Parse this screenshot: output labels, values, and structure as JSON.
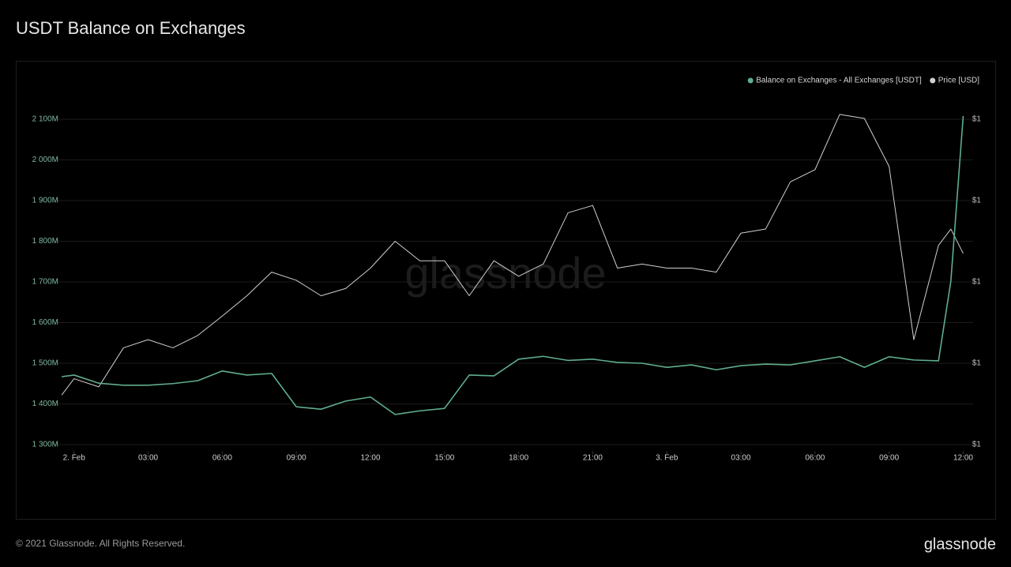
{
  "chart_data": {
    "type": "line",
    "title": "USDT Balance on Exchanges",
    "watermark": "glassnode",
    "footer": "© 2021 Glassnode. All Rights Reserved.",
    "brand": "glassnode",
    "legend_position": "top-right",
    "grid": true,
    "x": [
      -0.5,
      0,
      1,
      2,
      3,
      4,
      5,
      6,
      7,
      8,
      9,
      10,
      11,
      12,
      13,
      14,
      15,
      16,
      17,
      18,
      19,
      20,
      21,
      22,
      23,
      24,
      25,
      26,
      27,
      28,
      29,
      30,
      31,
      32,
      33,
      34,
      35,
      35.5,
      36
    ],
    "xlim": [
      -0.6,
      36.4
    ],
    "xticks": [
      {
        "value": 0,
        "label": "2. Feb"
      },
      {
        "value": 3,
        "label": "03:00"
      },
      {
        "value": 6,
        "label": "06:00"
      },
      {
        "value": 9,
        "label": "09:00"
      },
      {
        "value": 12,
        "label": "12:00"
      },
      {
        "value": 15,
        "label": "15:00"
      },
      {
        "value": 18,
        "label": "18:00"
      },
      {
        "value": 21,
        "label": "21:00"
      },
      {
        "value": 24,
        "label": "3. Feb"
      },
      {
        "value": 27,
        "label": "03:00"
      },
      {
        "value": 30,
        "label": "06:00"
      },
      {
        "value": 33,
        "label": "09:00"
      },
      {
        "value": 36,
        "label": "12:00"
      }
    ],
    "ylim": [
      1280,
      2150
    ],
    "yticks": [
      {
        "value": 1300,
        "label": "1 300M"
      },
      {
        "value": 1400,
        "label": "1 400M"
      },
      {
        "value": 1500,
        "label": "1 500M"
      },
      {
        "value": 1600,
        "label": "1 600M"
      },
      {
        "value": 1700,
        "label": "1 700M"
      },
      {
        "value": 1800,
        "label": "1 800M"
      },
      {
        "value": 1900,
        "label": "1 900M"
      },
      {
        "value": 2000,
        "label": "2 000M"
      },
      {
        "value": 2100,
        "label": "2 100M"
      }
    ],
    "y2lim": [
      0.9979,
      1.00225
    ],
    "y2ticks": [
      {
        "value": 0.998,
        "label": "$1"
      },
      {
        "value": 0.999,
        "label": "$1"
      },
      {
        "value": 1.0,
        "label": "$1"
      },
      {
        "value": 1.001,
        "label": "$1"
      },
      {
        "value": 1.002,
        "label": "$1"
      }
    ],
    "series": [
      {
        "name": "Balance on Exchanges - All Exchanges [USDT]",
        "color": "#5fae8c",
        "axis": "y",
        "values": [
          1467,
          1471,
          1451,
          1446,
          1446,
          1450,
          1457,
          1481,
          1471,
          1475,
          1393,
          1387,
          1407,
          1417,
          1374,
          1383,
          1389,
          1471,
          1469,
          1510,
          1517,
          1507,
          1510,
          1502,
          1500,
          1490,
          1496,
          1484,
          1494,
          1498,
          1496,
          1506,
          1516,
          1490,
          1516,
          1508,
          1506,
          1702,
          2108
        ]
      },
      {
        "name": "Price [USD]",
        "color": "#d0d0d0",
        "axis": "y2",
        "values": [
          0.99861,
          0.99881,
          0.99871,
          0.99919,
          0.99929,
          0.99919,
          0.99934,
          0.99958,
          0.99983,
          1.00012,
          1.00002,
          0.99983,
          0.99992,
          1.00017,
          1.0005,
          1.00026,
          1.00026,
          0.99983,
          1.00026,
          1.00007,
          1.00022,
          1.00085,
          1.00094,
          1.00017,
          1.00022,
          1.00017,
          1.00017,
          1.00012,
          1.0006,
          1.00065,
          1.00123,
          1.00138,
          1.00206,
          1.00201,
          1.00142,
          0.99929,
          1.00045,
          1.00065,
          1.00035
        ]
      }
    ]
  }
}
